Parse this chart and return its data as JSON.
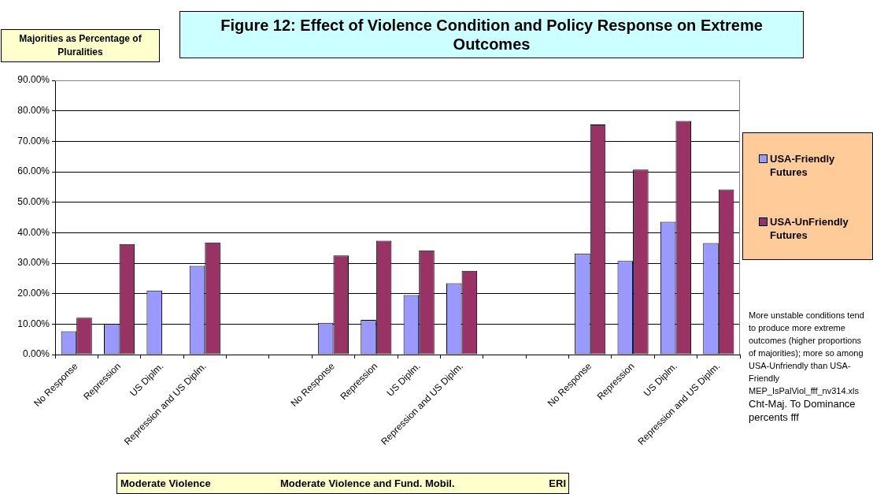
{
  "chart_data": {
    "type": "bar",
    "title": "Figure 12: Effect of Violence Condition and Policy Response on Extreme Outcomes",
    "ylabel": "Majorities as Percentage of Pluralities",
    "categories": [
      "No Response",
      "Repression",
      "US Diplm.",
      "Repression and US Diplm.",
      null,
      null,
      "No Response",
      "Repression",
      "US Diplm.",
      "Repression and US Diplm.",
      null,
      null,
      "No Response",
      "Repression",
      "US Diplm.",
      "Repression and US Diplm."
    ],
    "series": [
      {
        "name": "USA-Friendly Futures",
        "color": "#9999ff",
        "values": [
          7.6,
          10.0,
          21.0,
          29.1,
          null,
          null,
          10.4,
          11.4,
          19.5,
          23.4,
          null,
          null,
          33.2,
          30.7,
          43.6,
          36.6
        ]
      },
      {
        "name": "USA-UnFriendly Futures",
        "color": "#993366",
        "values": [
          12.1,
          36.3,
          null,
          36.8,
          null,
          null,
          32.5,
          37.4,
          34.2,
          27.5,
          null,
          null,
          75.5,
          60.7,
          76.7,
          54.2
        ]
      }
    ],
    "ylim": [
      0,
      90
    ],
    "yticks": [
      {
        "value": 0,
        "label": "0.00%"
      },
      {
        "value": 10,
        "label": "10.00%"
      },
      {
        "value": 20,
        "label": "20.00%"
      },
      {
        "value": 30,
        "label": "30.00%"
      },
      {
        "value": 40,
        "label": "40.00%"
      },
      {
        "value": 50,
        "label": "50.00%"
      },
      {
        "value": 60,
        "label": "60.00%"
      },
      {
        "value": 70,
        "label": "70.00%"
      },
      {
        "value": 80,
        "label": "80.00%"
      },
      {
        "value": 90,
        "label": "90.00%"
      }
    ],
    "grid": "y",
    "legend": "right",
    "annotations": [
      "Moderate Violence",
      "Moderate Violence and Fund. Mobil.",
      "ERI",
      "More unstable conditions tend to produce more extreme outcomes (higher proportions of majorities); more so among USA-Unfriendly than USA-Friendly",
      "MEP_IsPalViol_fff_nv314.xls",
      "Cht-Maj. To Dominance percents fff"
    ]
  }
}
